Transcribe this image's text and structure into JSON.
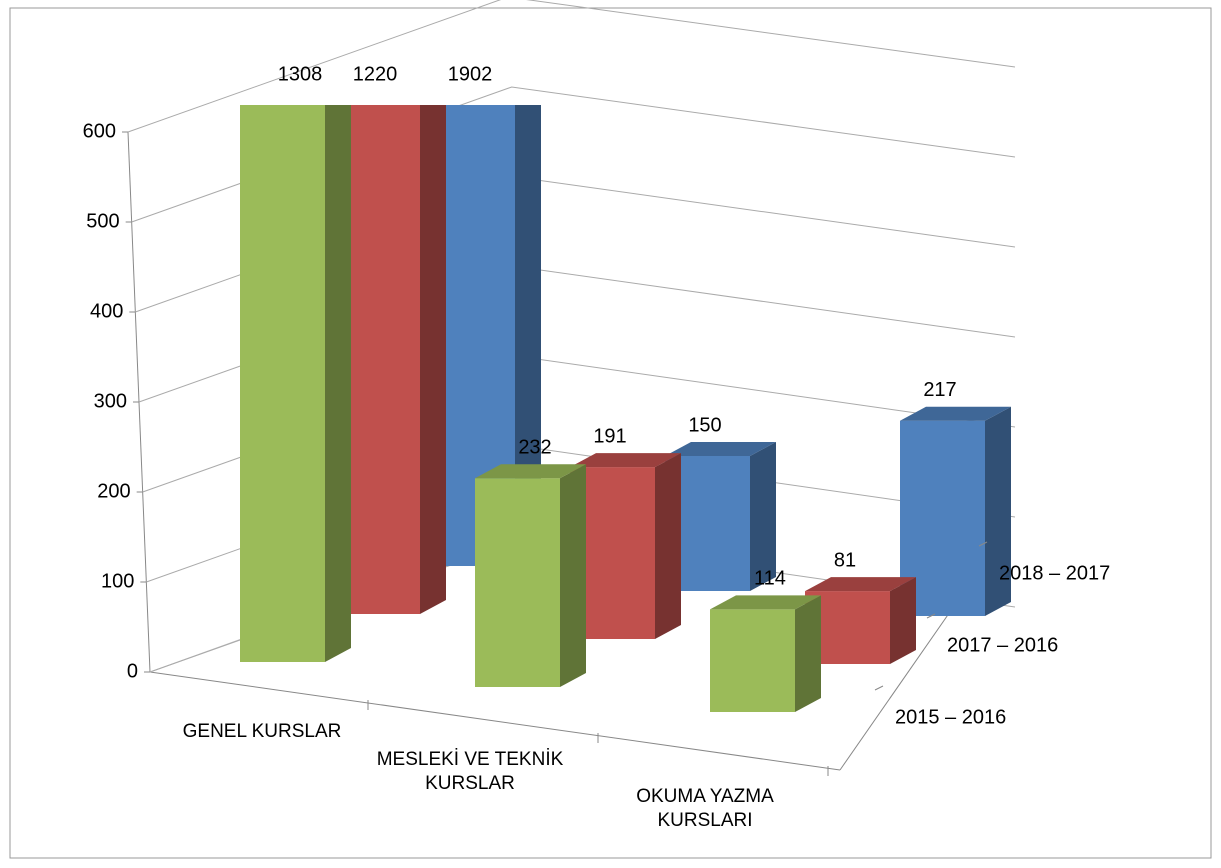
{
  "chart_data": {
    "type": "bar3d",
    "categories": [
      "GENEL KURSLAR",
      "MESLEKİ VE TEKNİK KURSLAR",
      "OKUMA YAZMA KURSLARI"
    ],
    "series": [
      {
        "name": "2018 – 2017",
        "color": "#4f81bd",
        "values": [
          1902,
          150,
          217
        ]
      },
      {
        "name": "2017 – 2016",
        "color": "#c0504d",
        "values": [
          1220,
          191,
          81
        ]
      },
      {
        "name": "2015 – 2016",
        "color": "#9bbb59",
        "values": [
          1308,
          232,
          114
        ]
      }
    ],
    "ylim": [
      0,
      600
    ],
    "yticks": [
      0,
      100,
      200,
      300,
      400,
      500,
      600
    ],
    "grid": true
  }
}
